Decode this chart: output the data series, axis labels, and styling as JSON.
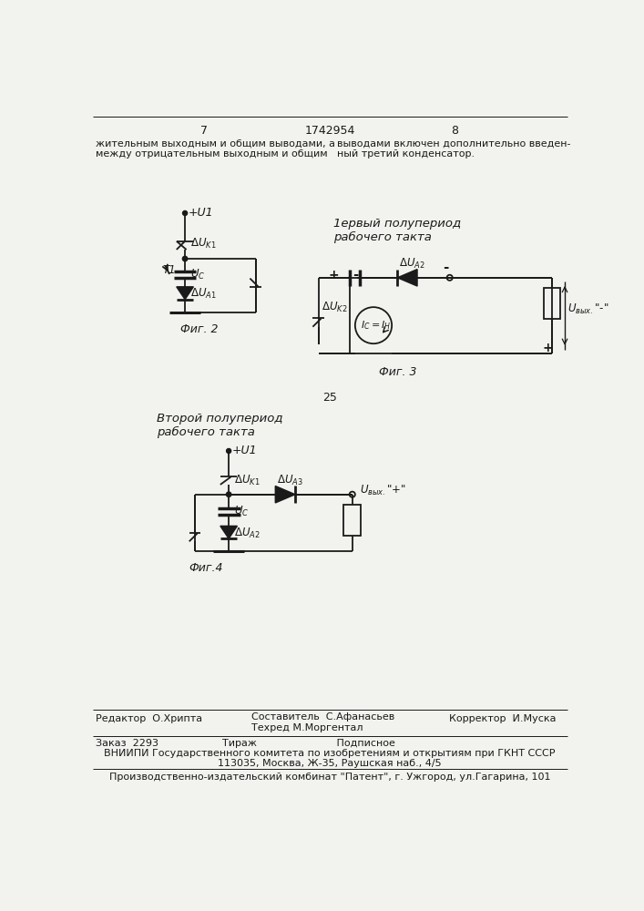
{
  "page_number_left": "7",
  "page_number_center": "1742954",
  "page_number_right": "8",
  "text_left": "жительным выходным и общим выводами, а\nмежду отрицательным выходным и общим",
  "text_right": "выводами включен дополнительно введен-\nный третий конденсатор.",
  "fig2_label": "Фиг. 2",
  "fig3_label": "Фиг. 3",
  "fig4_label": "Фиг.4",
  "fig3_title": "1ервый полупериод\nрабочего такта",
  "fig4_title": "Второй полупериод\nрабочего такта",
  "page_num_25": "25",
  "footer_line1_left": "Редактор  О.Хрипта",
  "footer_line1_center": "Составитель  С.Афанасьев\nТехред М.Моргентал",
  "footer_line1_right": "Корректор  И.Муска",
  "footer_line2": "Заказ  2293                    Тираж                         Подписное",
  "footer_line3": "ВНИИПИ Государственного комитета по изобретениям и открытиям при ГКНТ СССР",
  "footer_line4": "113035, Москва, Ж-35, Раушская наб., 4/5",
  "footer_line5": "Производственно-издательский комбинат \"Патент\", г. Ужгород, ул.Гагарина, 101",
  "bg_color": "#f2f2ee",
  "line_color": "#1a1a1a"
}
